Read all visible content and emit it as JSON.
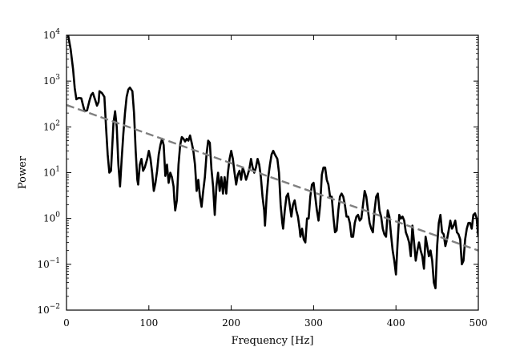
{
  "chart_data": {
    "type": "line",
    "title": "",
    "xlabel": "Frequency [Hz]",
    "ylabel": "Power",
    "xlim": [
      0,
      500
    ],
    "ylim": [
      0.01,
      10000
    ],
    "yscale": "log",
    "grid": false,
    "x_ticks": [
      0,
      100,
      200,
      300,
      400,
      500
    ],
    "x_tick_labels": [
      "0",
      "100",
      "200",
      "300",
      "400",
      "500"
    ],
    "y_ticks": [
      0.01,
      0.1,
      1,
      10,
      100,
      1000,
      10000
    ],
    "y_tick_labels": [
      {
        "base": "10",
        "exp": "−2"
      },
      {
        "base": "10",
        "exp": "−1"
      },
      {
        "base": "10",
        "exp": "0"
      },
      {
        "base": "10",
        "exp": "1"
      },
      {
        "base": "10",
        "exp": "2"
      },
      {
        "base": "10",
        "exp": "3"
      },
      {
        "base": "10",
        "exp": "4"
      }
    ],
    "series": [
      {
        "style": "solid",
        "color": "#000000",
        "points": [
          [
            2,
            10000
          ],
          [
            5,
            5000
          ],
          [
            8,
            1800
          ],
          [
            10,
            700
          ],
          [
            12,
            400
          ],
          [
            15,
            430
          ],
          [
            18,
            420
          ],
          [
            20,
            300
          ],
          [
            22,
            220
          ],
          [
            25,
            230
          ],
          [
            28,
            380
          ],
          [
            30,
            500
          ],
          [
            32,
            550
          ],
          [
            35,
            380
          ],
          [
            37,
            290
          ],
          [
            39,
            350
          ],
          [
            40,
            600
          ],
          [
            43,
            550
          ],
          [
            46,
            450
          ],
          [
            48,
            100
          ],
          [
            50,
            25
          ],
          [
            52,
            10
          ],
          [
            54,
            11
          ],
          [
            57,
            120
          ],
          [
            59,
            220
          ],
          [
            61,
            100
          ],
          [
            63,
            15
          ],
          [
            65,
            5
          ],
          [
            67,
            20
          ],
          [
            69,
            70
          ],
          [
            71,
            200
          ],
          [
            73,
            450
          ],
          [
            75,
            650
          ],
          [
            77,
            720
          ],
          [
            80,
            600
          ],
          [
            82,
            200
          ],
          [
            84,
            30
          ],
          [
            86,
            7
          ],
          [
            87,
            5.5
          ],
          [
            89,
            15
          ],
          [
            91,
            20
          ],
          [
            93,
            11
          ],
          [
            95,
            13
          ],
          [
            98,
            20
          ],
          [
            100,
            30
          ],
          [
            102,
            20
          ],
          [
            104,
            10
          ],
          [
            106,
            4
          ],
          [
            108,
            6
          ],
          [
            110,
            11
          ],
          [
            112,
            25
          ],
          [
            114,
            40
          ],
          [
            116,
            55
          ],
          [
            118,
            40
          ],
          [
            120,
            8.5
          ],
          [
            122,
            15
          ],
          [
            124,
            6
          ],
          [
            126,
            10
          ],
          [
            128,
            8
          ],
          [
            130,
            5
          ],
          [
            131,
            2.5
          ],
          [
            132,
            1.5
          ],
          [
            134,
            2.5
          ],
          [
            136,
            15
          ],
          [
            138,
            40
          ],
          [
            140,
            60
          ],
          [
            142,
            55
          ],
          [
            144,
            48
          ],
          [
            146,
            55
          ],
          [
            148,
            50
          ],
          [
            150,
            65
          ],
          [
            152,
            45
          ],
          [
            154,
            30
          ],
          [
            156,
            15
          ],
          [
            158,
            4
          ],
          [
            160,
            7
          ],
          [
            162,
            3
          ],
          [
            164,
            1.8
          ],
          [
            166,
            4
          ],
          [
            168,
            8
          ],
          [
            170,
            25
          ],
          [
            172,
            50
          ],
          [
            174,
            45
          ],
          [
            176,
            12
          ],
          [
            178,
            5
          ],
          [
            180,
            1.2
          ],
          [
            182,
            5
          ],
          [
            184,
            10
          ],
          [
            186,
            4
          ],
          [
            188,
            8
          ],
          [
            190,
            3.5
          ],
          [
            192,
            8
          ],
          [
            194,
            3.5
          ],
          [
            196,
            10
          ],
          [
            198,
            20
          ],
          [
            200,
            30
          ],
          [
            202,
            20
          ],
          [
            204,
            10
          ],
          [
            206,
            5.5
          ],
          [
            208,
            9
          ],
          [
            210,
            11
          ],
          [
            212,
            7
          ],
          [
            214,
            13
          ],
          [
            216,
            10
          ],
          [
            218,
            7
          ],
          [
            220,
            9
          ],
          [
            222,
            12
          ],
          [
            224,
            20
          ],
          [
            226,
            13
          ],
          [
            228,
            10
          ],
          [
            230,
            13
          ],
          [
            232,
            20
          ],
          [
            234,
            15
          ],
          [
            236,
            8
          ],
          [
            238,
            3
          ],
          [
            240,
            1.5
          ],
          [
            241,
            0.7
          ],
          [
            243,
            3
          ],
          [
            245,
            8
          ],
          [
            247,
            15
          ],
          [
            249,
            25
          ],
          [
            251,
            30
          ],
          [
            253,
            25
          ],
          [
            256,
            20
          ],
          [
            258,
            10
          ],
          [
            260,
            2
          ],
          [
            262,
            0.8
          ],
          [
            263,
            0.6
          ],
          [
            265,
            1.5
          ],
          [
            267,
            3
          ],
          [
            269,
            3.5
          ],
          [
            271,
            2
          ],
          [
            273,
            1.1
          ],
          [
            275,
            2
          ],
          [
            277,
            2.5
          ],
          [
            279,
            1.5
          ],
          [
            281,
            1.1
          ],
          [
            283,
            0.6
          ],
          [
            284,
            0.4
          ],
          [
            286,
            0.6
          ],
          [
            288,
            0.35
          ],
          [
            290,
            0.3
          ],
          [
            292,
            1
          ],
          [
            294,
            1
          ],
          [
            296,
            3
          ],
          [
            298,
            5.5
          ],
          [
            300,
            6
          ],
          [
            302,
            3
          ],
          [
            304,
            1.5
          ],
          [
            306,
            0.9
          ],
          [
            308,
            2
          ],
          [
            310,
            9
          ],
          [
            312,
            13
          ],
          [
            314,
            13
          ],
          [
            316,
            7
          ],
          [
            318,
            5.5
          ],
          [
            320,
            3
          ],
          [
            322,
            3
          ],
          [
            324,
            1.1
          ],
          [
            326,
            0.5
          ],
          [
            328,
            0.55
          ],
          [
            330,
            1.5
          ],
          [
            332,
            3
          ],
          [
            334,
            3.5
          ],
          [
            336,
            3
          ],
          [
            338,
            2
          ],
          [
            340,
            1.1
          ],
          [
            342,
            1.1
          ],
          [
            344,
            0.8
          ],
          [
            346,
            0.4
          ],
          [
            348,
            0.4
          ],
          [
            350,
            0.8
          ],
          [
            352,
            1.1
          ],
          [
            354,
            1.2
          ],
          [
            356,
            0.9
          ],
          [
            358,
            1
          ],
          [
            360,
            2
          ],
          [
            362,
            4
          ],
          [
            364,
            3
          ],
          [
            366,
            1.5
          ],
          [
            368,
            0.8
          ],
          [
            370,
            0.6
          ],
          [
            372,
            0.5
          ],
          [
            374,
            1.5
          ],
          [
            376,
            3
          ],
          [
            378,
            3.5
          ],
          [
            380,
            1.5
          ],
          [
            382,
            1.1
          ],
          [
            384,
            0.6
          ],
          [
            386,
            0.45
          ],
          [
            388,
            0.4
          ],
          [
            390,
            1.5
          ],
          [
            392,
            1.1
          ],
          [
            394,
            0.45
          ],
          [
            396,
            0.2
          ],
          [
            398,
            0.12
          ],
          [
            400,
            0.06
          ],
          [
            402,
            0.3
          ],
          [
            404,
            1.2
          ],
          [
            406,
            1
          ],
          [
            408,
            1.1
          ],
          [
            410,
            0.9
          ],
          [
            412,
            0.5
          ],
          [
            414,
            0.4
          ],
          [
            416,
            0.3
          ],
          [
            418,
            0.15
          ],
          [
            420,
            0.7
          ],
          [
            422,
            0.3
          ],
          [
            424,
            0.12
          ],
          [
            426,
            0.2
          ],
          [
            428,
            0.3
          ],
          [
            430,
            0.2
          ],
          [
            432,
            0.15
          ],
          [
            434,
            0.08
          ],
          [
            436,
            0.4
          ],
          [
            438,
            0.25
          ],
          [
            440,
            0.15
          ],
          [
            442,
            0.2
          ],
          [
            444,
            0.12
          ],
          [
            446,
            0.04
          ],
          [
            448,
            0.03
          ],
          [
            450,
            0.25
          ],
          [
            452,
            0.8
          ],
          [
            454,
            1.2
          ],
          [
            456,
            0.5
          ],
          [
            458,
            0.45
          ],
          [
            460,
            0.25
          ],
          [
            462,
            0.35
          ],
          [
            464,
            0.55
          ],
          [
            466,
            0.9
          ],
          [
            468,
            0.6
          ],
          [
            470,
            0.7
          ],
          [
            472,
            0.9
          ],
          [
            474,
            0.5
          ],
          [
            476,
            0.45
          ],
          [
            478,
            0.35
          ],
          [
            480,
            0.1
          ],
          [
            482,
            0.12
          ],
          [
            484,
            0.35
          ],
          [
            486,
            0.6
          ],
          [
            488,
            0.8
          ],
          [
            490,
            0.8
          ],
          [
            492,
            0.6
          ],
          [
            494,
            1.2
          ],
          [
            496,
            1.3
          ],
          [
            498,
            1
          ],
          [
            500,
            0.4
          ]
        ]
      },
      {
        "style": "dashed",
        "color": "#808080",
        "points": [
          [
            0,
            300
          ],
          [
            500,
            0.2
          ]
        ]
      }
    ]
  }
}
